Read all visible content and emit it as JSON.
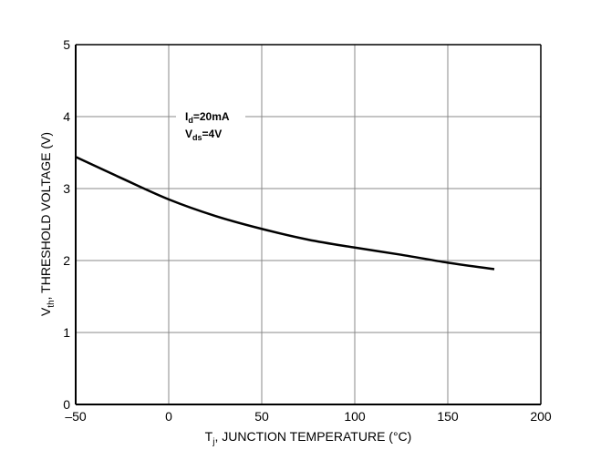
{
  "chart_data": {
    "type": "line",
    "title": "",
    "xlabel": {
      "main": "T",
      "sub": "j",
      "rest": ", JUNCTION TEMPERATURE (°C)"
    },
    "ylabel": {
      "main": "V",
      "sub": "th",
      "rest": ", THRESHOLD VOLTAGE (V)"
    },
    "xlim": [
      -50,
      200
    ],
    "ylim": [
      0,
      5
    ],
    "xticks": [
      -50,
      0,
      50,
      100,
      150,
      200
    ],
    "xtick_labels": [
      "–50",
      "0",
      "50",
      "100",
      "150",
      "200"
    ],
    "yticks": [
      0,
      1,
      2,
      3,
      4,
      5
    ],
    "ytick_labels": [
      "0",
      "1",
      "2",
      "3",
      "4",
      "5"
    ],
    "grid": true,
    "annotations": [
      {
        "main": "I",
        "sub": "d",
        "rest": "=20mA"
      },
      {
        "main": "V",
        "sub": "ds",
        "rest": "=4V"
      }
    ],
    "series": [
      {
        "x": [
          -50,
          -25,
          0,
          25,
          50,
          75,
          100,
          125,
          150,
          175
        ],
        "y": [
          3.44,
          3.14,
          2.85,
          2.62,
          2.44,
          2.29,
          2.18,
          2.08,
          1.97,
          1.88
        ],
        "color": "#000000"
      }
    ]
  }
}
